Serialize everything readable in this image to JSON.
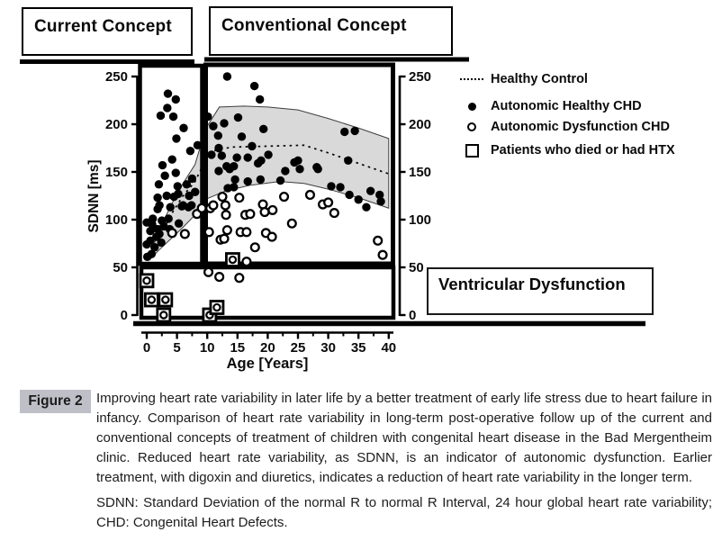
{
  "header": {
    "current_concept": "Current Concept",
    "conventional_concept": "Conventional Concept"
  },
  "annotations": {
    "ventricular_dysfunction": "Ventricular Dysfunction"
  },
  "legend": [
    {
      "marker": "dotted-line",
      "label": "Healthy Control"
    },
    {
      "marker": "filled-circle",
      "label": "Autonomic Healthy CHD"
    },
    {
      "marker": "open-circle",
      "label": "Autonomic Dysfunction CHD"
    },
    {
      "marker": "open-square",
      "label": "Patients who died or had HTX"
    }
  ],
  "chart_data": {
    "type": "scatter",
    "xlabel": "Age [Years]",
    "ylabel": "SDNN [ms]",
    "xlim": [
      0,
      40
    ],
    "ylim": [
      0,
      250
    ],
    "xticks": [
      0,
      5,
      10,
      15,
      20,
      25,
      30,
      35,
      40
    ],
    "yticks": [
      0,
      50,
      100,
      150,
      200,
      250
    ],
    "grid": false,
    "legend_position": "top-right",
    "band_color": "#d9d9d9",
    "healthy_band": {
      "top": [
        [
          0.5,
          62
        ],
        [
          2,
          88
        ],
        [
          4,
          115
        ],
        [
          6,
          138
        ],
        [
          8,
          158
        ],
        [
          9.7,
          195
        ],
        [
          12,
          218
        ],
        [
          16,
          219
        ],
        [
          20,
          218
        ],
        [
          25,
          215
        ],
        [
          30,
          206
        ],
        [
          35,
          196
        ],
        [
          40,
          185
        ]
      ],
      "bottom": [
        [
          0.5,
          58
        ],
        [
          2,
          68
        ],
        [
          4,
          80
        ],
        [
          6,
          92
        ],
        [
          8,
          105
        ],
        [
          10,
          122
        ],
        [
          13,
          130
        ],
        [
          17,
          136
        ],
        [
          22,
          140
        ],
        [
          26,
          138
        ],
        [
          30,
          132
        ],
        [
          35,
          123
        ],
        [
          40,
          112
        ]
      ]
    },
    "healthy_center": [
      [
        0.5,
        60
      ],
      [
        2,
        80
      ],
      [
        4,
        105
      ],
      [
        6,
        125
      ],
      [
        8,
        140
      ],
      [
        9.5,
        160
      ],
      [
        11,
        172
      ],
      [
        14,
        176
      ],
      [
        20,
        177
      ],
      [
        26,
        178
      ],
      [
        30,
        170
      ],
      [
        35,
        159
      ],
      [
        40,
        148
      ]
    ],
    "series": [
      {
        "name": "Autonomic Healthy CHD",
        "marker": "filled-circle",
        "points": [
          [
            3.5,
            232
          ],
          [
            4.8,
            226
          ],
          [
            3.4,
            217
          ],
          [
            2.3,
            209
          ],
          [
            4.4,
            208
          ],
          [
            6.1,
            196
          ],
          [
            4.9,
            185
          ],
          [
            8.4,
            178
          ],
          [
            7.2,
            172
          ],
          [
            4.2,
            163
          ],
          [
            2.6,
            157
          ],
          [
            4.8,
            149
          ],
          [
            3.0,
            146
          ],
          [
            7.5,
            143
          ],
          [
            2.0,
            137
          ],
          [
            5.1,
            135
          ],
          [
            6.6,
            137
          ],
          [
            8.0,
            129
          ],
          [
            5.2,
            127
          ],
          [
            7.0,
            125
          ],
          [
            7.4,
            115
          ],
          [
            6.0,
            115
          ],
          [
            1.8,
            123
          ],
          [
            3.3,
            125
          ],
          [
            4.5,
            124
          ],
          [
            1.8,
            111
          ],
          [
            2.1,
            115
          ],
          [
            3.9,
            113
          ],
          [
            5.8,
            114
          ],
          [
            6.9,
            113
          ],
          [
            0.0,
            97
          ],
          [
            1.0,
            101
          ],
          [
            2.5,
            99
          ],
          [
            3.6,
            101
          ],
          [
            5.3,
            96
          ],
          [
            0.9,
            95
          ],
          [
            2.8,
            93
          ],
          [
            0.6,
            88
          ],
          [
            1.8,
            90
          ],
          [
            3.8,
            90
          ],
          [
            1.6,
            82
          ],
          [
            2.1,
            85
          ],
          [
            0.6,
            78
          ],
          [
            2.4,
            76
          ],
          [
            0.0,
            74
          ],
          [
            1.3,
            71
          ],
          [
            0.8,
            64
          ],
          [
            0.1,
            61
          ],
          [
            13.3,
            250
          ],
          [
            17.8,
            240
          ],
          [
            18.7,
            226
          ],
          [
            10.1,
            208
          ],
          [
            15.1,
            207
          ],
          [
            12.8,
            201
          ],
          [
            11.0,
            198
          ],
          [
            19.3,
            195
          ],
          [
            11.8,
            188
          ],
          [
            15.7,
            187
          ],
          [
            32.7,
            192
          ],
          [
            34.4,
            193
          ],
          [
            17.4,
            177
          ],
          [
            11.9,
            175
          ],
          [
            10.7,
            168
          ],
          [
            12.4,
            167
          ],
          [
            14.9,
            165
          ],
          [
            16.7,
            165
          ],
          [
            18.9,
            162
          ],
          [
            20.1,
            168
          ],
          [
            25.0,
            162
          ],
          [
            13.2,
            156
          ],
          [
            14.4,
            156
          ],
          [
            18.4,
            159
          ],
          [
            24.4,
            160
          ],
          [
            25.3,
            153
          ],
          [
            28.3,
            153
          ],
          [
            28.1,
            155
          ],
          [
            33.3,
            162
          ],
          [
            11.9,
            151
          ],
          [
            13.7,
            153
          ],
          [
            14.6,
            142
          ],
          [
            16.7,
            140
          ],
          [
            18.8,
            142
          ],
          [
            22.1,
            141
          ],
          [
            22.9,
            151
          ],
          [
            13.4,
            133
          ],
          [
            14.4,
            134
          ],
          [
            30.5,
            135
          ],
          [
            32.0,
            134
          ],
          [
            33.5,
            126
          ],
          [
            35.0,
            121
          ],
          [
            37.0,
            130
          ],
          [
            38.5,
            126
          ],
          [
            38.7,
            119
          ],
          [
            36.3,
            113
          ]
        ]
      },
      {
        "name": "Autonomic Dysfunction CHD",
        "marker": "open-circle",
        "points": [
          [
            4.2,
            86
          ],
          [
            6.3,
            85
          ],
          [
            8.3,
            106
          ],
          [
            9.1,
            112
          ],
          [
            10.5,
            112
          ],
          [
            10.3,
            87
          ],
          [
            12.5,
            124
          ],
          [
            15.3,
            123
          ],
          [
            13.0,
            115
          ],
          [
            11.0,
            115
          ],
          [
            13.1,
            105
          ],
          [
            16.3,
            105
          ],
          [
            17.1,
            106
          ],
          [
            19.2,
            116
          ],
          [
            19.5,
            108
          ],
          [
            20.8,
            110
          ],
          [
            22.7,
            124
          ],
          [
            24.0,
            96
          ],
          [
            13.3,
            89
          ],
          [
            15.5,
            87
          ],
          [
            16.5,
            87
          ],
          [
            19.7,
            86
          ],
          [
            20.7,
            82
          ],
          [
            12.2,
            79
          ],
          [
            12.8,
            80
          ],
          [
            17.9,
            71
          ],
          [
            16.5,
            56
          ],
          [
            29.1,
            116
          ],
          [
            30.0,
            118
          ],
          [
            31.0,
            107
          ],
          [
            38.2,
            78
          ],
          [
            39.0,
            63
          ],
          [
            10.2,
            45
          ],
          [
            12.0,
            40
          ],
          [
            15.3,
            39
          ],
          [
            27.0,
            126
          ]
        ]
      },
      {
        "name": "Patients who died or had HTX",
        "marker": "open-square",
        "points": [
          [
            0.0,
            36
          ],
          [
            0.8,
            16
          ],
          [
            3.1,
            16
          ],
          [
            2.8,
            0
          ],
          [
            10.4,
            0
          ],
          [
            11.6,
            8
          ],
          [
            14.2,
            58
          ]
        ]
      }
    ]
  },
  "caption": {
    "label": "Figure 2",
    "text": "Improving heart rate variability in later life by a better treatment of early life stress due to heart failure in infancy. Comparison of heart rate variability in long-term post-operative follow up of the current and conventional concepts of treatment of children with congenital heart disease in the Bad Mergentheim clinic. Reduced heart rate variability, as SDNN, is an indicator of autonomic dysfunction. Earlier treatment, with digoxin and diuretics, indicates a reduction of heart rate variability in the longer term.",
    "abbreviations": "SDNN: Standard Deviation of the normal R to normal R Interval, 24 hour global heart rate variability; CHD: Congenital Heart Defects."
  }
}
